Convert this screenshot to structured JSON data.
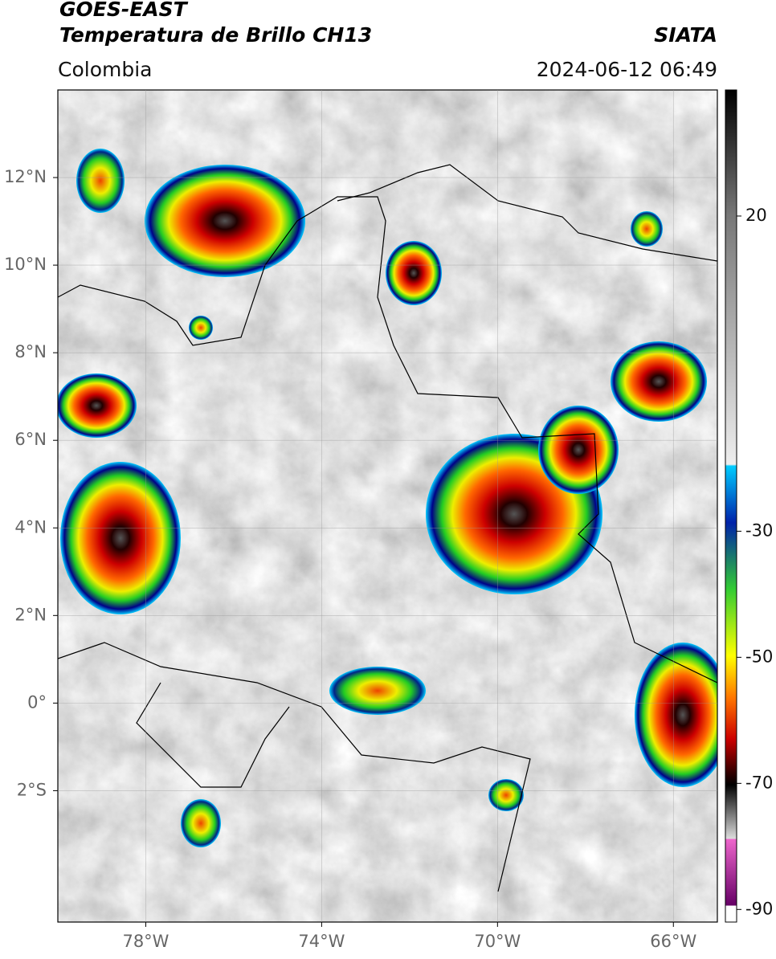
{
  "header": {
    "title": "GOES-EAST",
    "subtitle": "Temperatura de Brillo CH13",
    "source": "SIATA",
    "region": "Colombia",
    "datetime": "2024-06-12 06:49"
  },
  "map": {
    "xlim": [
      -80,
      -65
    ],
    "ylim": [
      -5,
      14
    ],
    "xticks": [
      {
        "value": -78,
        "label": "78°W"
      },
      {
        "value": -74,
        "label": "74°W"
      },
      {
        "value": -70,
        "label": "70°W"
      },
      {
        "value": -66,
        "label": "66°W"
      }
    ],
    "yticks": [
      {
        "value": 12,
        "label": "12°N"
      },
      {
        "value": 10,
        "label": "10°N"
      },
      {
        "value": 8,
        "label": "8°N"
      },
      {
        "value": 6,
        "label": "6°N"
      },
      {
        "value": 4,
        "label": "4°N"
      },
      {
        "value": 2,
        "label": "2°N"
      },
      {
        "value": 0,
        "label": "0°"
      },
      {
        "value": -2,
        "label": "2°S"
      }
    ],
    "grid": true
  },
  "colorbar": {
    "lim": [
      -92,
      40
    ],
    "ticks": [
      20,
      -30,
      -50,
      -70,
      -90
    ]
  }
}
